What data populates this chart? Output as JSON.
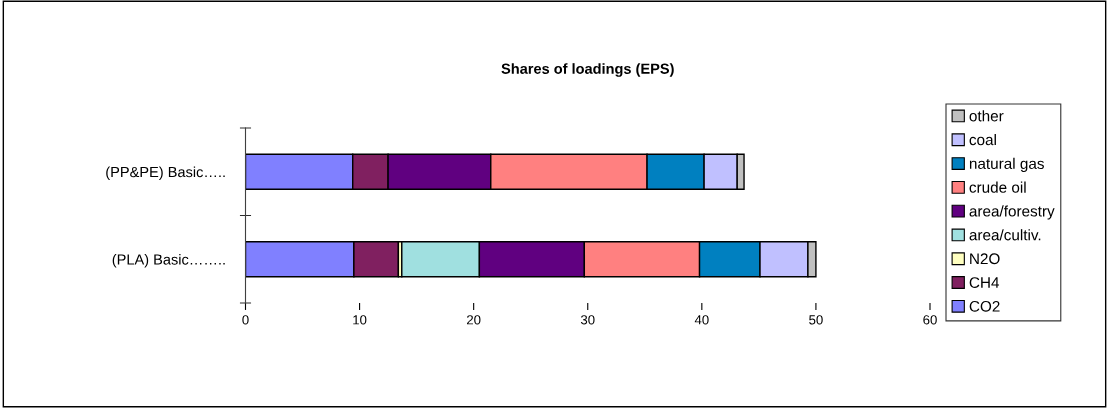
{
  "chart_data": {
    "type": "bar",
    "orientation": "horizontal",
    "stacked": true,
    "title": "Shares of loadings (EPS)",
    "categories": [
      "(PP&PE) Basic…..",
      "(PLA) Basic…….."
    ],
    "series": [
      {
        "name": "CO2",
        "color": "#8080ff",
        "values": [
          9.4,
          9.5
        ]
      },
      {
        "name": "CH4",
        "color": "#802060",
        "values": [
          3.1,
          3.9
        ]
      },
      {
        "name": "N2O",
        "color": "#ffffc0",
        "values": [
          null,
          0.3
        ]
      },
      {
        "name": "area/cultiv.",
        "color": "#a0e0e0",
        "values": [
          null,
          6.8
        ]
      },
      {
        "name": "area/forestry",
        "color": "#600080",
        "values": [
          9.0,
          9.2
        ]
      },
      {
        "name": "crude oil",
        "color": "#ff8080",
        "values": [
          13.7,
          10.1
        ]
      },
      {
        "name": "natural gas",
        "color": "#0080c0",
        "values": [
          5.0,
          5.3
        ]
      },
      {
        "name": "coal",
        "color": "#c0c0ff",
        "values": [
          2.9,
          4.2
        ]
      },
      {
        "name": "other",
        "color": "#c0c0c0",
        "values": [
          0.6,
          0.7
        ]
      }
    ],
    "xlim": [
      0,
      60
    ],
    "xticks": [
      0,
      10,
      20,
      30,
      40,
      50,
      60
    ],
    "grid": false,
    "legend": "right"
  }
}
